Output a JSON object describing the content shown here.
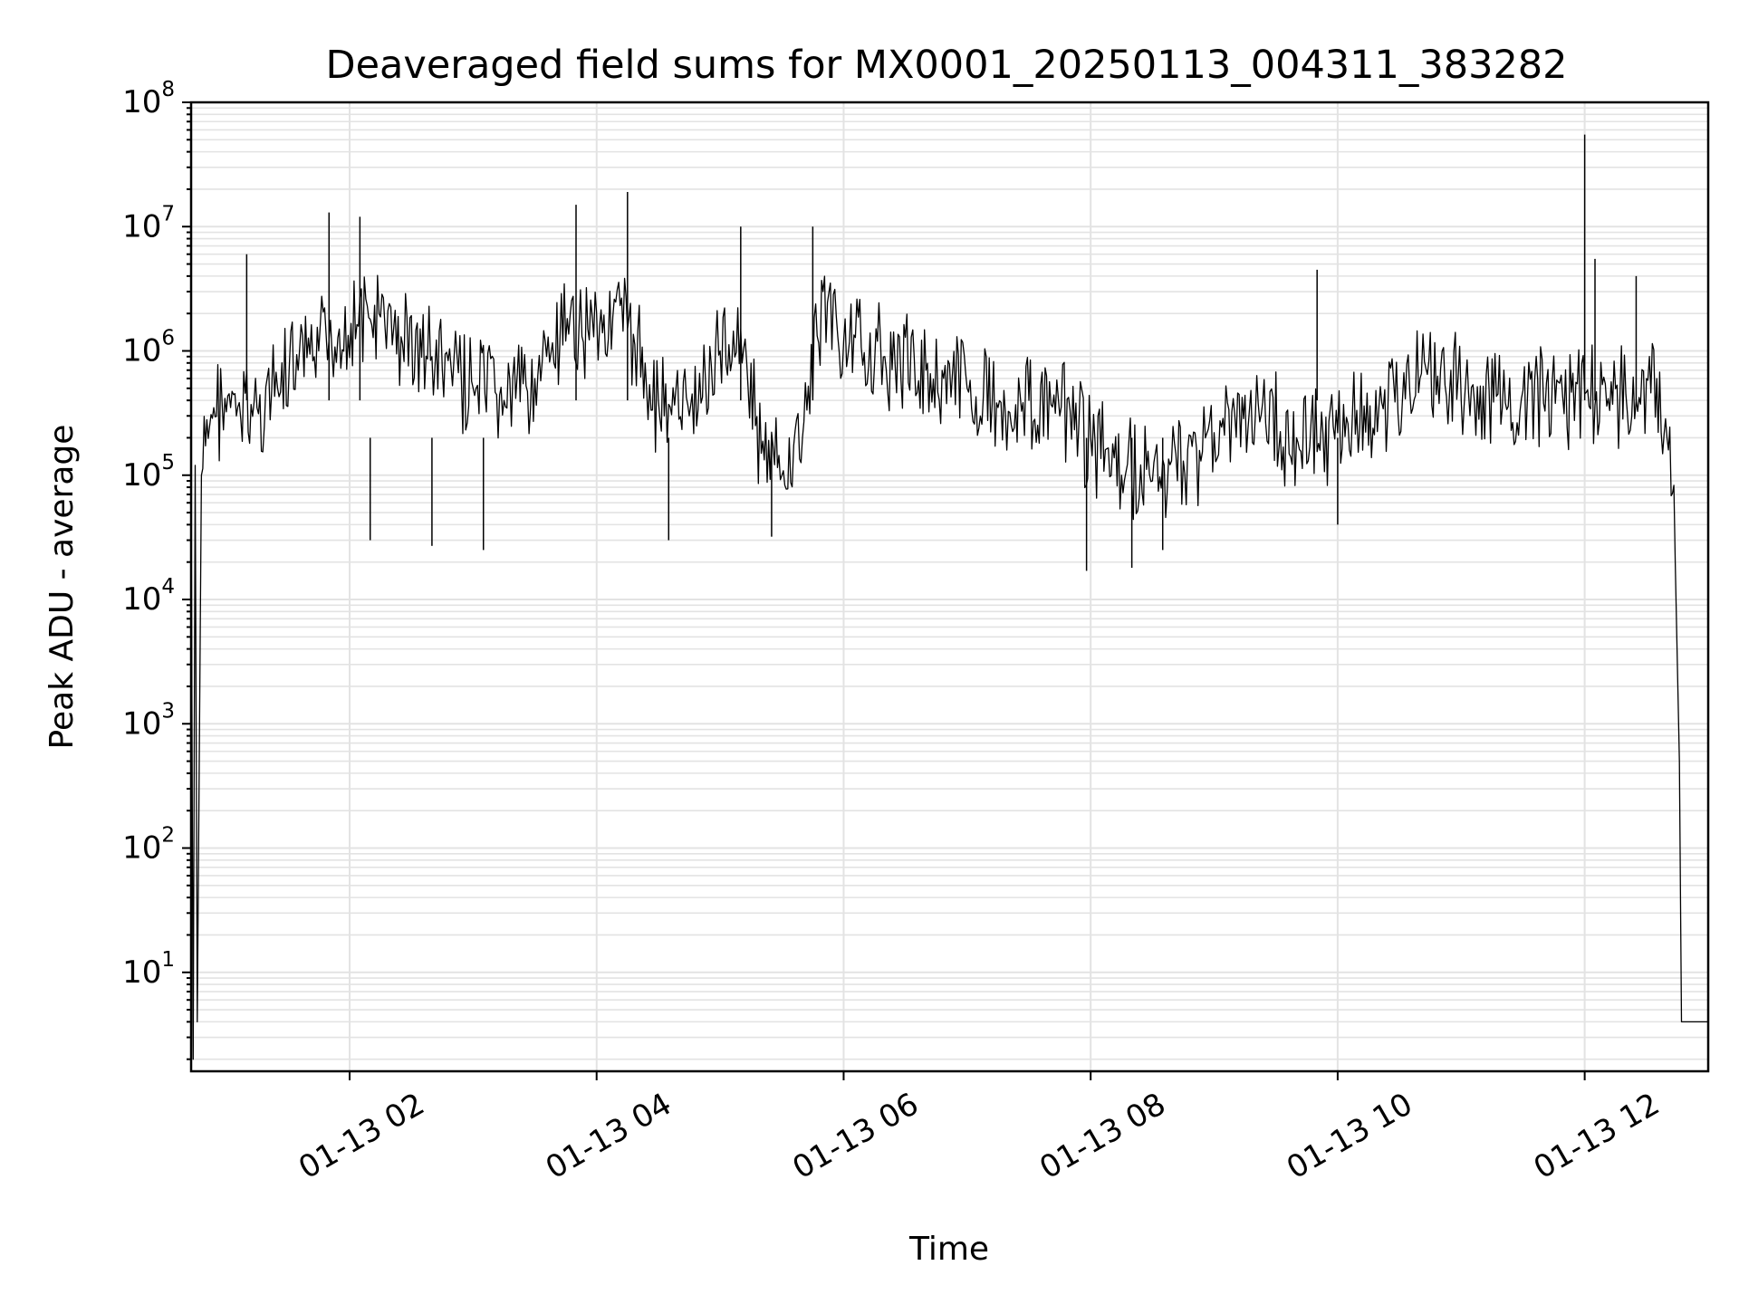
{
  "chart_data": {
    "type": "line",
    "title": "Deaveraged field sums for MX0001_20250113_004311_383282",
    "xlabel": "Time",
    "ylabel": "Peak ADU - average",
    "yscale": "log",
    "ylim": [
      1.6,
      100000000
    ],
    "xlim": [
      "2025-01-13 00:43",
      "2025-01-13 13:00"
    ],
    "grid": true,
    "x_tick_labels": [
      "01-13 02",
      "01-13 04",
      "01-13 06",
      "01-13 08",
      "01-13 10",
      "01-13 12"
    ],
    "x_ticks": [
      "2025-01-13 02:00",
      "2025-01-13 04:00",
      "2025-01-13 06:00",
      "2025-01-13 08:00",
      "2025-01-13 10:00",
      "2025-01-13 12:00"
    ],
    "y_ticks": [
      {
        "base": "10",
        "exp": "1",
        "value": 10
      },
      {
        "base": "10",
        "exp": "2",
        "value": 100
      },
      {
        "base": "10",
        "exp": "3",
        "value": 1000
      },
      {
        "base": "10",
        "exp": "4",
        "value": 10000
      },
      {
        "base": "10",
        "exp": "5",
        "value": 100000
      },
      {
        "base": "10",
        "exp": "6",
        "value": 1000000
      },
      {
        "base": "10",
        "exp": "7",
        "value": 10000000
      },
      {
        "base": "10",
        "exp": "8",
        "value": 100000000
      }
    ],
    "series": [
      {
        "color": "#000000",
        "points": [
          [
            "2025-01-13 00:43",
            100000
          ],
          [
            "2025-01-13 00:44",
            2
          ],
          [
            "2025-01-13 00:45",
            120000
          ],
          [
            "2025-01-13 00:46",
            4
          ],
          [
            "2025-01-13 00:48",
            100000
          ],
          [
            "2025-01-13 00:52",
            250000
          ],
          [
            "2025-01-13 00:58",
            400000
          ],
          [
            "2025-01-13 01:05",
            300000
          ],
          [
            "2025-01-13 01:15",
            350000
          ],
          [
            "2025-01-13 01:25",
            500000
          ],
          [
            "2025-01-13 01:35",
            700000
          ],
          [
            "2025-01-13 01:45",
            1000000
          ],
          [
            "2025-01-13 01:55",
            1500000
          ],
          [
            "2025-01-13 02:10",
            1800000
          ],
          [
            "2025-01-13 02:25",
            1300000
          ],
          [
            "2025-01-13 02:40",
            900000
          ],
          [
            "2025-01-13 03:00",
            500000
          ],
          [
            "2025-01-13 03:15",
            400000
          ],
          [
            "2025-01-13 03:30",
            600000
          ],
          [
            "2025-01-13 03:45",
            1200000
          ],
          [
            "2025-01-13 04:00",
            2000000
          ],
          [
            "2025-01-13 04:15",
            1500000
          ],
          [
            "2025-01-13 04:30",
            400000
          ],
          [
            "2025-01-13 04:45",
            300000
          ],
          [
            "2025-01-13 05:00",
            1000000
          ],
          [
            "2025-01-13 05:10",
            1500000
          ],
          [
            "2025-01-13 05:20",
            150000
          ],
          [
            "2025-01-13 05:30",
            100000
          ],
          [
            "2025-01-13 05:40",
            200000
          ],
          [
            "2025-01-13 05:50",
            3000000
          ],
          [
            "2025-01-13 06:00",
            1200000
          ],
          [
            "2025-01-13 06:20",
            900000
          ],
          [
            "2025-01-13 06:40",
            700000
          ],
          [
            "2025-01-13 07:00",
            500000
          ],
          [
            "2025-01-13 07:15",
            350000
          ],
          [
            "2025-01-13 07:30",
            400000
          ],
          [
            "2025-01-13 07:45",
            300000
          ],
          [
            "2025-01-13 08:00",
            200000
          ],
          [
            "2025-01-13 08:15",
            100000
          ],
          [
            "2025-01-13 08:30",
            90000
          ],
          [
            "2025-01-13 08:45",
            130000
          ],
          [
            "2025-01-13 09:00",
            220000
          ],
          [
            "2025-01-13 09:20",
            300000
          ],
          [
            "2025-01-13 09:40",
            200000
          ],
          [
            "2025-01-13 10:00",
            220000
          ],
          [
            "2025-01-13 10:20",
            350000
          ],
          [
            "2025-01-13 10:40",
            600000
          ],
          [
            "2025-01-13 10:55",
            700000
          ],
          [
            "2025-01-13 11:00",
            400000
          ],
          [
            "2025-01-13 11:20",
            350000
          ],
          [
            "2025-01-13 11:40",
            380000
          ],
          [
            "2025-01-13 12:00",
            450000
          ],
          [
            "2025-01-13 12:20",
            450000
          ],
          [
            "2025-01-13 12:35",
            600000
          ],
          [
            "2025-01-13 12:40",
            200000
          ],
          [
            "2025-01-13 12:44",
            20000
          ],
          [
            "2025-01-13 12:46",
            500
          ],
          [
            "2025-01-13 12:47",
            4
          ],
          [
            "2025-01-13 13:00",
            4
          ]
        ],
        "spikes": [
          [
            "2025-01-13 01:10",
            6000000
          ],
          [
            "2025-01-13 01:50",
            13000000
          ],
          [
            "2025-01-13 02:05",
            12000000
          ],
          [
            "2025-01-13 03:50",
            15000000
          ],
          [
            "2025-01-13 04:15",
            19000000
          ],
          [
            "2025-01-13 05:10",
            10000000
          ],
          [
            "2025-01-13 05:45",
            10000000
          ],
          [
            "2025-01-13 09:50",
            4500000
          ],
          [
            "2025-01-13 12:00",
            55000000
          ],
          [
            "2025-01-13 12:05",
            5500000
          ],
          [
            "2025-01-13 12:25",
            4000000
          ]
        ],
        "dips": [
          [
            "2025-01-13 02:10",
            30000
          ],
          [
            "2025-01-13 02:40",
            27000
          ],
          [
            "2025-01-13 03:05",
            25000
          ],
          [
            "2025-01-13 04:35",
            30000
          ],
          [
            "2025-01-13 05:25",
            32000
          ],
          [
            "2025-01-13 07:58",
            17000
          ],
          [
            "2025-01-13 08:20",
            18000
          ],
          [
            "2025-01-13 08:35",
            25000
          ],
          [
            "2025-01-13 10:00",
            40000
          ]
        ]
      }
    ]
  }
}
